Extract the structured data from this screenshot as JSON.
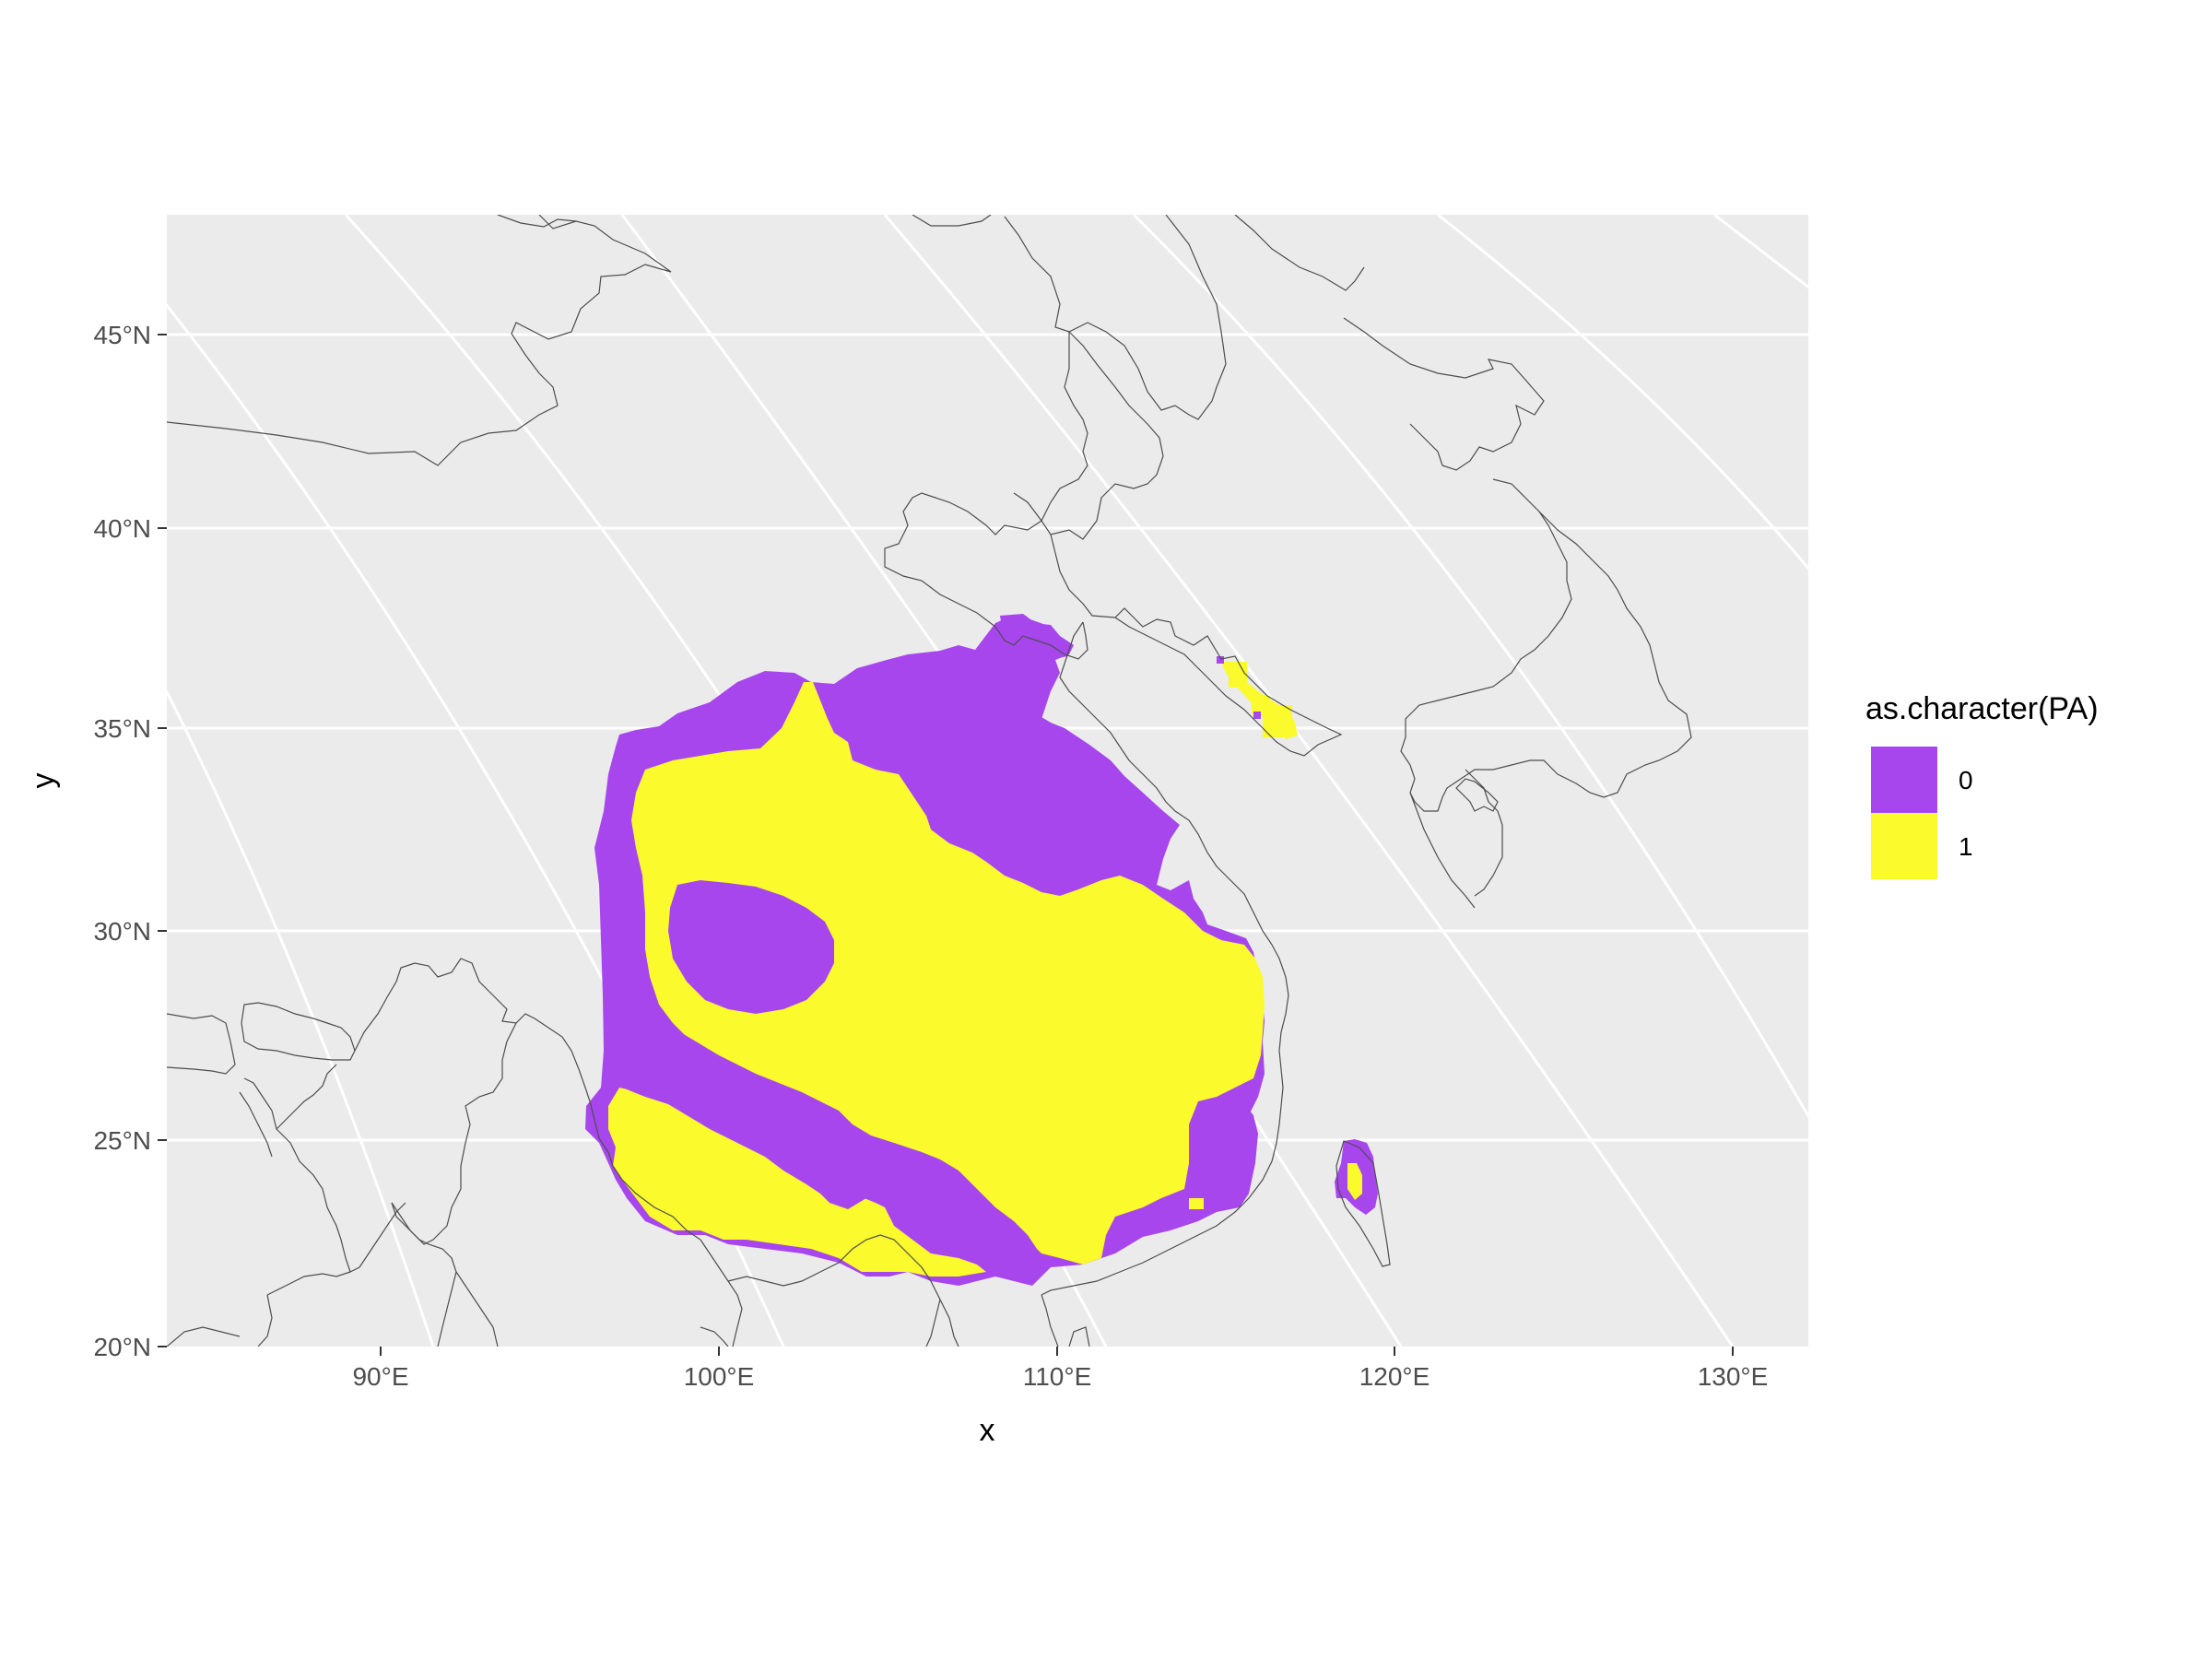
{
  "chart_data": {
    "type": "map",
    "xlabel": "x",
    "ylabel": "y",
    "x_ticks": [
      "90°E",
      "100°E",
      "110°E",
      "120°E",
      "130°E"
    ],
    "y_ticks": [
      "20°N",
      "25°N",
      "30°N",
      "35°N",
      "40°N",
      "45°N"
    ],
    "xlim": [
      83.5,
      132
    ],
    "ylim": [
      20,
      48
    ],
    "grid": true,
    "background": "#ebebeb",
    "legend": {
      "title": "as.character(PA)",
      "position": "right",
      "entries": [
        {
          "label": "0",
          "color": "#a846ee"
        },
        {
          "label": "1",
          "color": "#fafa2d"
        }
      ]
    },
    "regions": [
      {
        "class": "0",
        "description": "presence-absence raster extent over southern China",
        "lon_range": [
          96,
          117
        ],
        "lat_range": [
          21.3,
          37.9
        ]
      },
      {
        "class": "1",
        "description": "predicted presence cells within the raster",
        "lon_range": [
          97,
          117
        ],
        "lat_range": [
          21.8,
          36
        ]
      },
      {
        "class": "0",
        "description": "Taiwan cells",
        "lon_range": [
          118.6,
          119.8
        ],
        "lat_range": [
          23.5,
          25
        ]
      },
      {
        "class": "1",
        "description": "Shandong coastal cells",
        "lon_range": [
          114.5,
          117
        ],
        "lat_range": [
          34.2,
          36.5
        ]
      }
    ]
  }
}
